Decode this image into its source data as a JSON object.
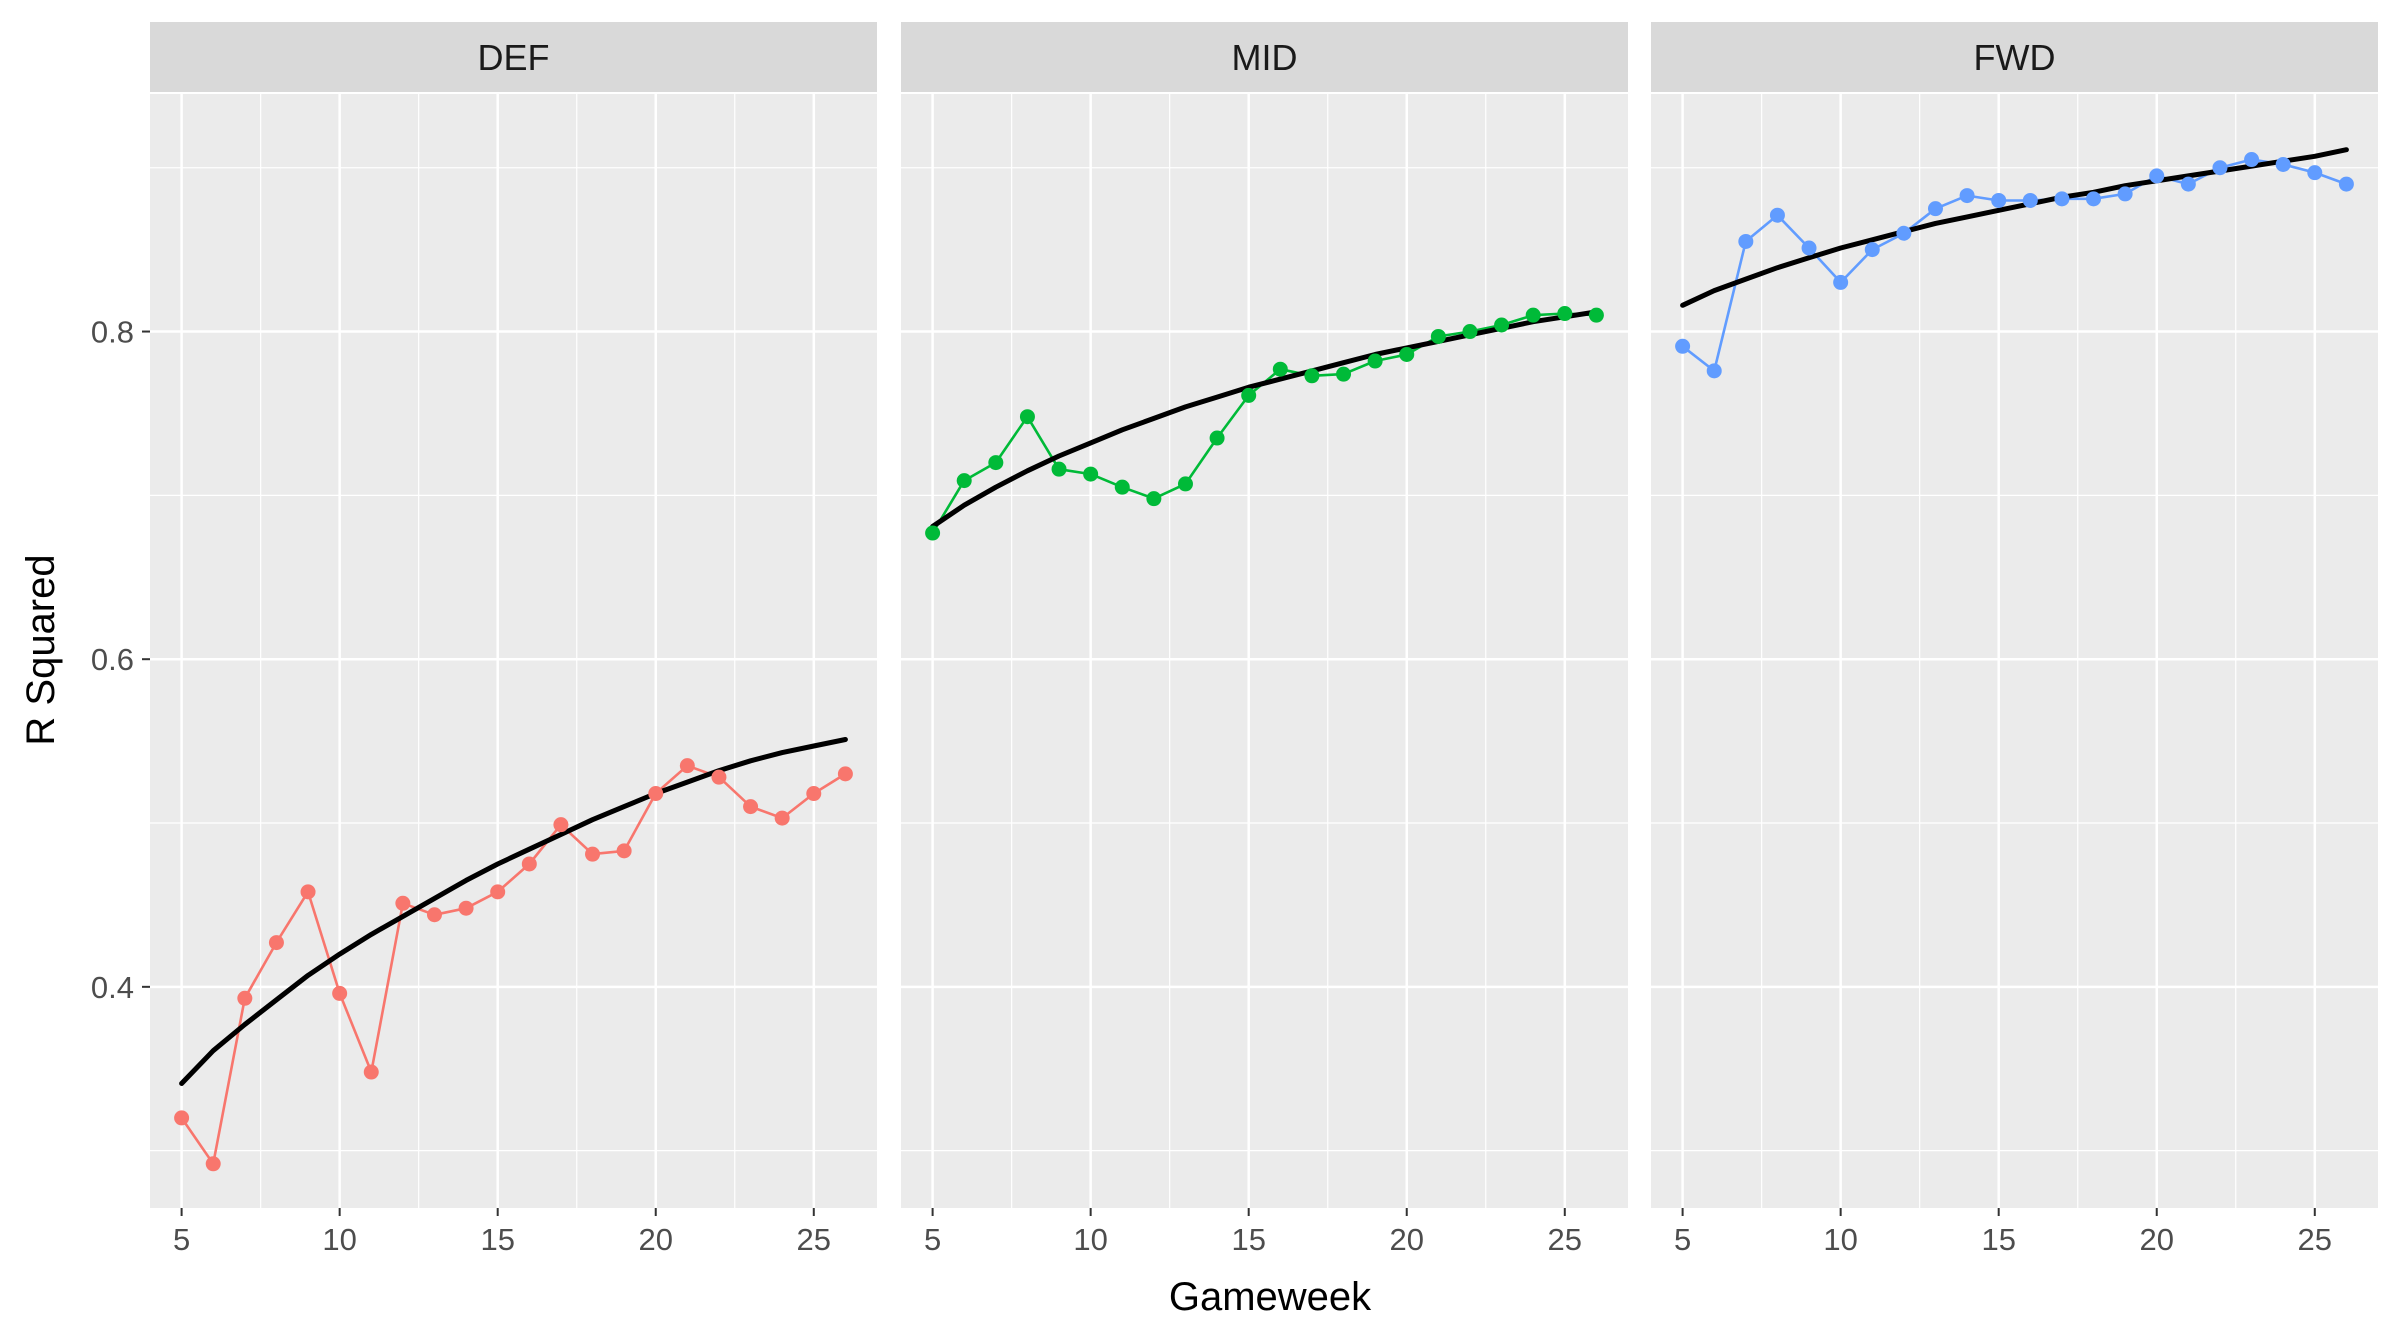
{
  "chart_data": {
    "type": "line",
    "facets": [
      "DEF",
      "MID",
      "FWD"
    ],
    "xlabel": "Gameweek",
    "ylabel": "R Squared",
    "xlim": [
      4,
      27
    ],
    "ylim": [
      0.265,
      0.945
    ],
    "x_ticks": [
      5,
      10,
      15,
      20,
      25
    ],
    "x_tick_labels": [
      "5",
      "10",
      "15",
      "20",
      "25"
    ],
    "y_ticks": [
      0.4,
      0.6,
      0.8
    ],
    "y_tick_labels": [
      "0.4",
      "0.6",
      "0.8"
    ],
    "grid": true,
    "legend": "none",
    "x": [
      5,
      6,
      7,
      8,
      9,
      10,
      11,
      12,
      13,
      14,
      15,
      16,
      17,
      18,
      19,
      20,
      21,
      22,
      23,
      24,
      25,
      26
    ],
    "series": [
      {
        "facet": "DEF",
        "color": "#F8766D",
        "values": [
          0.32,
          0.292,
          0.393,
          0.427,
          0.458,
          0.396,
          0.348,
          0.451,
          0.444,
          0.448,
          0.458,
          0.475,
          0.499,
          0.481,
          0.483,
          0.518,
          0.535,
          0.528,
          0.51,
          0.503,
          0.518,
          0.53
        ],
        "trend": [
          0.341,
          0.361,
          0.377,
          0.392,
          0.407,
          0.42,
          0.432,
          0.443,
          0.454,
          0.465,
          0.475,
          0.484,
          0.493,
          0.502,
          0.51,
          0.518,
          0.525,
          0.532,
          0.538,
          0.543,
          0.547,
          0.551
        ]
      },
      {
        "facet": "MID",
        "color": "#00BA38",
        "values": [
          0.677,
          0.709,
          0.72,
          0.748,
          0.716,
          0.713,
          0.705,
          0.698,
          0.707,
          0.735,
          0.761,
          0.777,
          0.773,
          0.774,
          0.782,
          0.786,
          0.797,
          0.8,
          0.804,
          0.81,
          0.811,
          0.81
        ],
        "trend": [
          0.681,
          0.694,
          0.705,
          0.715,
          0.724,
          0.732,
          0.74,
          0.747,
          0.754,
          0.76,
          0.766,
          0.771,
          0.776,
          0.781,
          0.786,
          0.79,
          0.794,
          0.798,
          0.802,
          0.806,
          0.809,
          0.812
        ]
      },
      {
        "facet": "FWD",
        "color": "#619CFF",
        "values": [
          0.791,
          0.776,
          0.855,
          0.871,
          0.851,
          0.83,
          0.85,
          0.86,
          0.875,
          0.883,
          0.88,
          0.88,
          0.881,
          0.881,
          0.884,
          0.895,
          0.89,
          0.9,
          0.905,
          0.902,
          0.897,
          0.89
        ],
        "trend": [
          0.816,
          0.825,
          0.832,
          0.839,
          0.845,
          0.851,
          0.856,
          0.861,
          0.866,
          0.87,
          0.874,
          0.878,
          0.882,
          0.885,
          0.889,
          0.892,
          0.895,
          0.898,
          0.901,
          0.904,
          0.907,
          0.911
        ]
      }
    ],
    "trend_color": "#000000"
  }
}
